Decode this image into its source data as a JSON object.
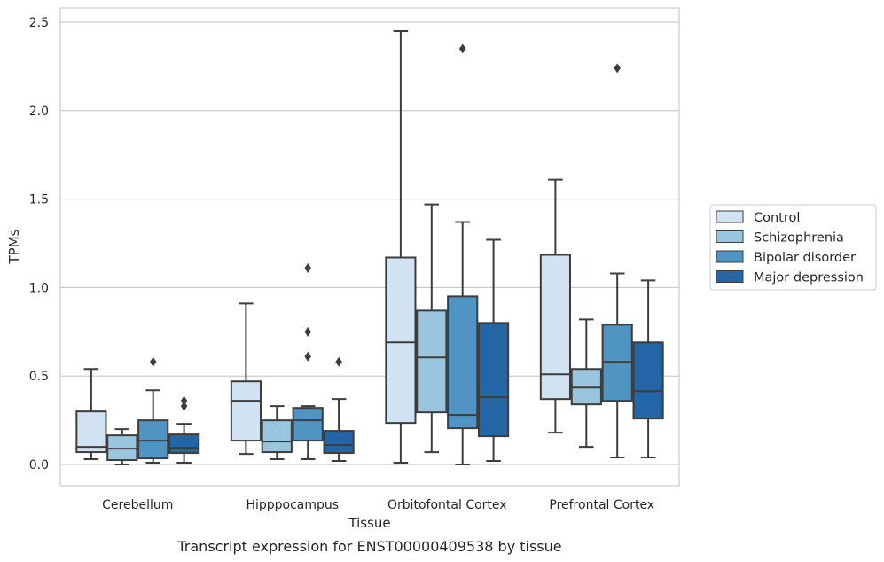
{
  "chart_data": {
    "type": "box",
    "title": "",
    "caption": "Transcript expression for ENST00000409538 by tissue",
    "xlabel": "Tissue",
    "ylabel": "TPMs",
    "ylim": [
      -0.12,
      2.58
    ],
    "yticks": [
      0.0,
      0.5,
      1.0,
      1.5,
      2.0,
      2.5
    ],
    "ytick_labels": [
      "0.0",
      "0.5",
      "1.0",
      "1.5",
      "2.0",
      "2.5"
    ],
    "grid": "horizontal",
    "legend_position": "right",
    "categories": [
      "Cerebellum",
      "Hipppocampus",
      "Orbitofontal Cortex",
      "Prefrontal Cortex"
    ],
    "series": [
      {
        "name": "Control",
        "color": "#d1e2f2",
        "boxes": [
          {
            "whislo": 0.03,
            "q1": 0.07,
            "med": 0.1,
            "q3": 0.3,
            "whishi": 0.54,
            "fliers": []
          },
          {
            "whislo": 0.06,
            "q1": 0.135,
            "med": 0.36,
            "q3": 0.47,
            "whishi": 0.91,
            "fliers": []
          },
          {
            "whislo": 0.01,
            "q1": 0.235,
            "med": 0.69,
            "q3": 1.17,
            "whishi": 2.45,
            "fliers": []
          },
          {
            "whislo": 0.18,
            "q1": 0.37,
            "med": 0.51,
            "q3": 1.185,
            "whishi": 1.61,
            "fliers": []
          }
        ]
      },
      {
        "name": "Schizophrenia",
        "color": "#9ac5de",
        "boxes": [
          {
            "whislo": 0.0,
            "q1": 0.025,
            "med": 0.09,
            "q3": 0.165,
            "whishi": 0.2,
            "fliers": []
          },
          {
            "whislo": 0.03,
            "q1": 0.07,
            "med": 0.13,
            "q3": 0.25,
            "whishi": 0.33,
            "fliers": []
          },
          {
            "whislo": 0.07,
            "q1": 0.295,
            "med": 0.605,
            "q3": 0.87,
            "whishi": 1.47,
            "fliers": []
          },
          {
            "whislo": 0.1,
            "q1": 0.34,
            "med": 0.435,
            "q3": 0.54,
            "whishi": 0.82,
            "fliers": []
          }
        ]
      },
      {
        "name": "Bipolar disorder",
        "color": "#5094c3",
        "boxes": [
          {
            "whislo": 0.01,
            "q1": 0.035,
            "med": 0.135,
            "q3": 0.25,
            "whishi": 0.42,
            "fliers": [
              0.58
            ]
          },
          {
            "whislo": 0.03,
            "q1": 0.135,
            "med": 0.25,
            "q3": 0.32,
            "whishi": 0.33,
            "fliers": [
              0.61,
              0.75,
              1.11
            ]
          },
          {
            "whislo": 0.0,
            "q1": 0.205,
            "med": 0.28,
            "q3": 0.95,
            "whishi": 1.37,
            "fliers": [
              2.35
            ]
          },
          {
            "whislo": 0.04,
            "q1": 0.36,
            "med": 0.58,
            "q3": 0.79,
            "whishi": 1.08,
            "fliers": [
              2.24
            ]
          }
        ]
      },
      {
        "name": "Major depression",
        "color": "#2465a6",
        "boxes": [
          {
            "whislo": 0.01,
            "q1": 0.065,
            "med": 0.095,
            "q3": 0.17,
            "whishi": 0.23,
            "fliers": [
              0.33,
              0.36
            ]
          },
          {
            "whislo": 0.02,
            "q1": 0.065,
            "med": 0.11,
            "q3": 0.19,
            "whishi": 0.37,
            "fliers": [
              0.58
            ]
          },
          {
            "whislo": 0.02,
            "q1": 0.16,
            "med": 0.38,
            "q3": 0.8,
            "whishi": 1.27,
            "fliers": []
          },
          {
            "whislo": 0.04,
            "q1": 0.26,
            "med": 0.415,
            "q3": 0.69,
            "whishi": 1.04,
            "fliers": []
          }
        ]
      }
    ]
  }
}
